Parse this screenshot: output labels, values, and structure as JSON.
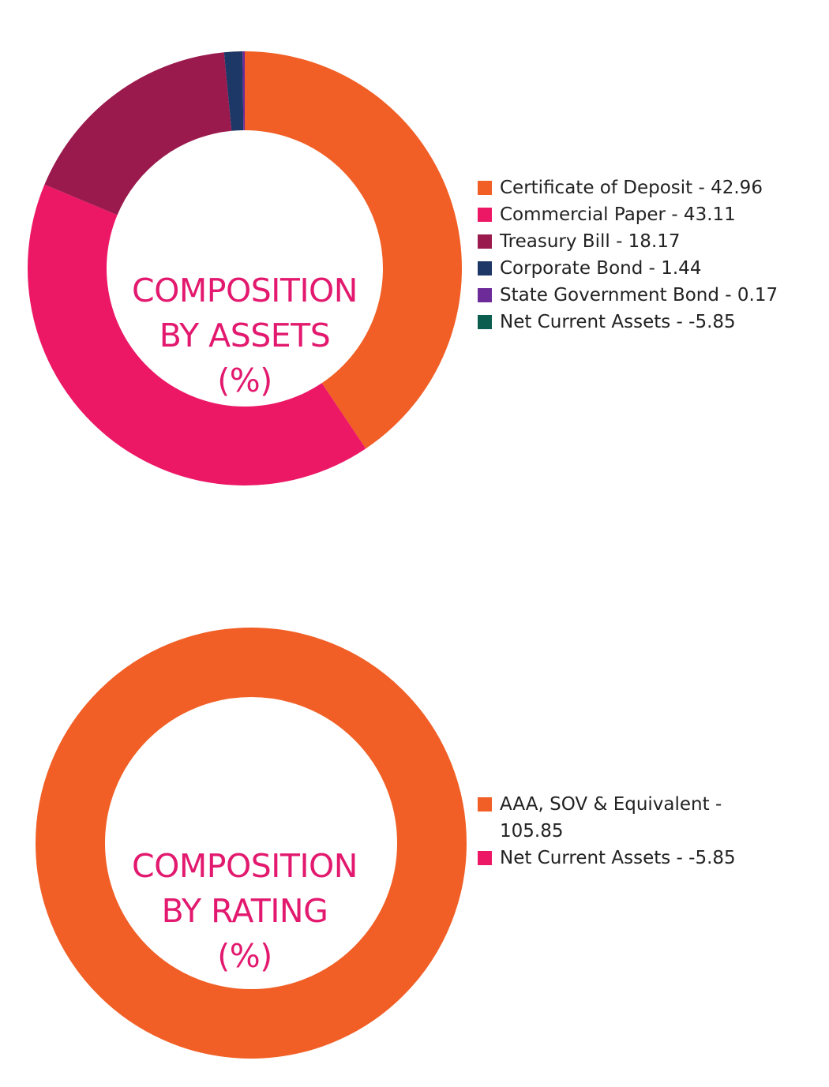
{
  "chart_data": [
    {
      "type": "pie",
      "donut": true,
      "center_label": [
        "COMPOSITION",
        "BY ASSETS",
        "(%)"
      ],
      "categories": [
        "Certificate of Deposit",
        "Commercial Paper",
        "Treasury Bill",
        "Corporate Bond",
        "State Government Bond",
        "Net Current Assets"
      ],
      "values": [
        42.96,
        43.11,
        18.17,
        1.44,
        0.17,
        -5.85
      ],
      "legend_labels": [
        "Certificate of Deposit - 42.96",
        "Commercial Paper - 43.11",
        "Treasury Bill - 18.17",
        "Corporate Bond - 1.44",
        "State Government Bond - 0.17",
        "Net Current Assets - -5.85"
      ],
      "colors": [
        "#f15f26",
        "#ec1765",
        "#9b1a4d",
        "#1d3766",
        "#6c2b98",
        "#0b5e4f"
      ],
      "legend_placement": "right"
    },
    {
      "type": "pie",
      "donut": true,
      "center_label": [
        "COMPOSITION",
        "BY RATING",
        "(%)"
      ],
      "categories": [
        "AAA, SOV & Equivalent",
        "Net Current Assets"
      ],
      "values": [
        105.85,
        -5.85
      ],
      "legend_labels": [
        "AAA, SOV & Equivalent - 105.85",
        "Net Current Assets - -5.85"
      ],
      "colors": [
        "#f15f26",
        "#ec1765"
      ],
      "legend_placement": "right"
    }
  ]
}
